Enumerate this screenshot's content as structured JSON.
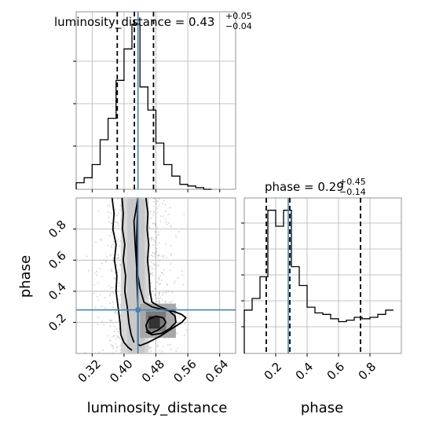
{
  "chart_data": [
    {
      "type": "histogram",
      "panel": "luminosity_distance marginal",
      "title": {
        "main": "luminosity_distance = 0.43",
        "sup": "+0.05",
        "sub": "−0.04"
      },
      "xlim": [
        0.28,
        0.68
      ],
      "bins": [
        0.28,
        0.3,
        0.32,
        0.34,
        0.36,
        0.38,
        0.4,
        0.42,
        0.44,
        0.46,
        0.48,
        0.5,
        0.52,
        0.54,
        0.56,
        0.58,
        0.6,
        0.62
      ],
      "counts": [
        0.04,
        0.07,
        0.15,
        0.3,
        0.43,
        0.66,
        0.85,
        1.0,
        0.62,
        0.48,
        0.28,
        0.15,
        0.08,
        0.03,
        0.02,
        0.01,
        0.0
      ],
      "quantiles": [
        0.383,
        0.426,
        0.474
      ],
      "truth": 0.435,
      "xticks": [
        0.32,
        0.4,
        0.48,
        0.56,
        0.64
      ],
      "grid": true
    },
    {
      "type": "contour-scatter",
      "panel": "phase vs luminosity_distance",
      "xlabel": "luminosity_distance",
      "ylabel": "phase",
      "xlim": [
        0.28,
        0.68
      ],
      "ylim": [
        0.0,
        1.0
      ],
      "xticks": [
        "0.32",
        "0.40",
        "0.48",
        "0.56",
        "0.64"
      ],
      "yticks": [
        "0.2",
        "0.4",
        "0.6",
        "0.8"
      ],
      "truth": {
        "x": 0.435,
        "y": 0.28
      },
      "contours": [
        {
          "x": [
            0.435,
            0.425,
            0.428,
            0.432,
            0.44,
            0.45,
            0.47,
            0.5,
            0.525,
            0.545,
            0.555,
            0.545,
            0.52,
            0.49,
            0.46,
            0.44,
            0.435,
            0.435,
            0.432,
            0.432,
            0.435
          ],
          "y": [
            1.0,
            0.85,
            0.7,
            0.55,
            0.42,
            0.33,
            0.3,
            0.28,
            0.27,
            0.25,
            0.23,
            0.2,
            0.16,
            0.11,
            0.07,
            0.05,
            0.06,
            0.3,
            0.5,
            0.75,
            1.0
          ]
        },
        {
          "x": [
            0.37,
            0.375,
            0.372,
            0.38,
            0.376,
            0.382,
            0.38,
            0.385,
            0.39,
            0.392,
            0.4,
            0.41,
            0.42
          ],
          "y": [
            1.0,
            0.9,
            0.8,
            0.7,
            0.6,
            0.5,
            0.4,
            0.3,
            0.2,
            0.12,
            0.07,
            0.04,
            0.02
          ]
        },
        {
          "x": [
            0.395,
            0.398,
            0.396,
            0.402,
            0.398,
            0.404,
            0.402,
            0.408,
            0.412,
            0.418,
            0.425
          ],
          "y": [
            1.0,
            0.9,
            0.8,
            0.7,
            0.6,
            0.5,
            0.4,
            0.3,
            0.2,
            0.12,
            0.07
          ]
        },
        {
          "x": [
            0.455,
            0.46,
            0.458,
            0.462,
            0.459,
            0.463,
            0.465,
            0.47,
            0.49,
            0.51,
            0.528,
            0.53,
            0.515,
            0.495,
            0.47,
            0.455
          ],
          "y": [
            1.0,
            0.9,
            0.8,
            0.7,
            0.6,
            0.5,
            0.4,
            0.33,
            0.3,
            0.28,
            0.24,
            0.2,
            0.16,
            0.13,
            0.12,
            0.14
          ]
        },
        {
          "x": [
            0.462,
            0.48,
            0.498,
            0.505,
            0.5,
            0.485,
            0.468,
            0.458,
            0.455,
            0.462
          ],
          "y": [
            0.22,
            0.24,
            0.23,
            0.2,
            0.18,
            0.15,
            0.13,
            0.15,
            0.18,
            0.22
          ]
        }
      ],
      "grid": true
    },
    {
      "type": "histogram",
      "panel": "phase marginal",
      "title": {
        "main": "phase = 0.29",
        "sup": "+0.45",
        "sub": "−0.14"
      },
      "xlabel": "phase",
      "xlim": [
        0.0,
        1.0
      ],
      "bins": [
        0.0,
        0.05,
        0.1,
        0.15,
        0.2,
        0.25,
        0.3,
        0.35,
        0.4,
        0.45,
        0.5,
        0.55,
        0.6,
        0.65,
        0.7,
        0.75,
        0.8,
        0.85,
        0.9,
        0.95
      ],
      "counts": [
        0.3,
        0.38,
        0.53,
        0.99,
        0.88,
        0.99,
        0.6,
        0.47,
        0.32,
        0.28,
        0.27,
        0.24,
        0.22,
        0.23,
        0.25,
        0.24,
        0.25,
        0.27,
        0.3
      ],
      "quantiles": [
        0.14,
        0.29,
        0.74
      ],
      "truth": 0.28,
      "xticks": [
        "0.2",
        "0.4",
        "0.6",
        "0.8"
      ],
      "grid": true
    }
  ]
}
